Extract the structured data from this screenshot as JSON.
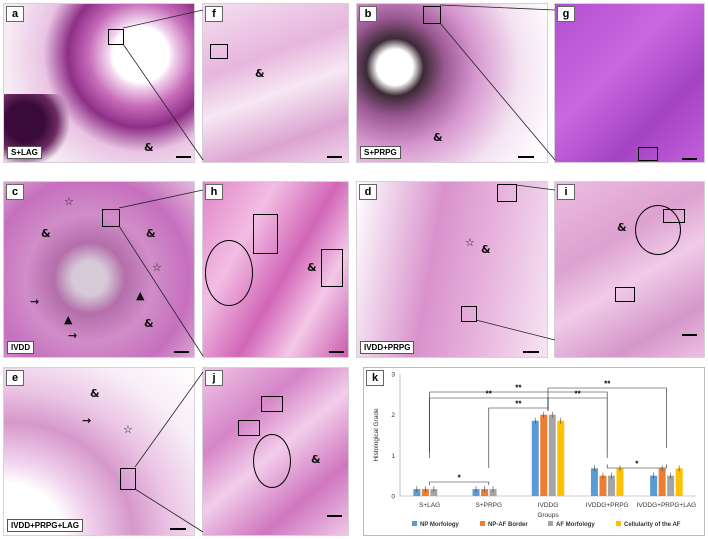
{
  "panels": [
    {
      "id": "a",
      "condition": "S+LAG"
    },
    {
      "id": "f",
      "condition": ""
    },
    {
      "id": "b",
      "condition": "S+PRPG"
    },
    {
      "id": "g",
      "condition": ""
    },
    {
      "id": "c",
      "condition": "IVDD"
    },
    {
      "id": "h",
      "condition": ""
    },
    {
      "id": "d",
      "condition": "IVDD+PRPG"
    },
    {
      "id": "i",
      "condition": ""
    },
    {
      "id": "e",
      "condition": "IVDD+PRPG+LAG"
    },
    {
      "id": "j",
      "condition": ""
    }
  ],
  "symbols": {
    "amp": "&",
    "star": "☆",
    "arrow": "→",
    "arrowhead": "▲"
  },
  "chart_panel_label": "k",
  "chart_data": {
    "type": "bar",
    "categories": [
      "S+LAG",
      "S+PRPG",
      "IVDDG",
      "IVDDG+PRPG",
      "IVDDG+PRPG+LAG"
    ],
    "series": [
      {
        "name": "NP Morfology",
        "color": "#5b9bd5",
        "values": [
          0.17,
          0.17,
          1.85,
          0.68,
          0.5
        ]
      },
      {
        "name": "NP-AF Border",
        "color": "#ed7d31",
        "values": [
          0.17,
          0.17,
          2.0,
          0.5,
          0.68
        ]
      },
      {
        "name": "AF Morfology",
        "color": "#a5a5a5",
        "values": [
          0.17,
          0.17,
          2.0,
          0.5,
          0.5
        ]
      },
      {
        "name": "Cellularity of the AF",
        "color": "#ffc000",
        "values": [
          0.0,
          0.0,
          1.85,
          0.68,
          0.68
        ]
      }
    ],
    "ylabel": "Histological Grade",
    "xlabel": "Groups",
    "ylim": [
      0,
      3
    ],
    "yticks": [
      "0",
      "1",
      "2",
      "3"
    ],
    "legend_position": "bottom",
    "significance": [
      "**",
      "**",
      "**",
      "**",
      "**",
      "*",
      "*"
    ]
  }
}
